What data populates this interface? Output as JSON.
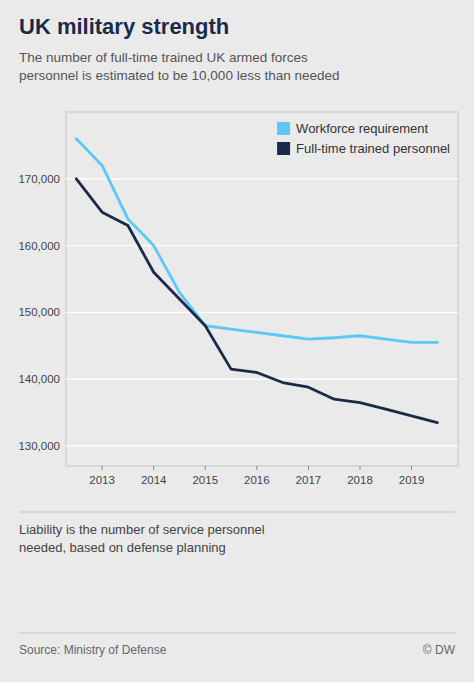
{
  "chart_data": {
    "type": "line",
    "title": "UK military strength",
    "subtitle": "The number of full-time trained UK armed forces\npersonnel is estimated to be 10,000 less than needed",
    "footnote": "Liability is the number of service personnel\nneeded, based on defense planning",
    "source": "Source: Ministry of Defense",
    "copyright": "© DW",
    "x": [
      2012.5,
      2013,
      2013.5,
      2014,
      2014.5,
      2015,
      2015.5,
      2016,
      2016.5,
      2017,
      2017.5,
      2018,
      2018.5,
      2019,
      2019.5
    ],
    "series": [
      {
        "name": "Workforce requirement",
        "color": "#5bc8f5",
        "values": [
          176000,
          172000,
          164000,
          160000,
          153000,
          148000,
          147500,
          147000,
          146500,
          146000,
          146200,
          146500,
          146000,
          145500,
          145500
        ]
      },
      {
        "name": "Full-time trained personnel",
        "color": "#1a2b4a",
        "values": [
          170000,
          165000,
          163000,
          156000,
          152000,
          148000,
          141500,
          141000,
          139500,
          138800,
          137000,
          136500,
          135500,
          134500,
          133500
        ]
      }
    ],
    "xlim": [
      2012.3,
      2019.9
    ],
    "xticks": [
      2013,
      2014,
      2015,
      2016,
      2017,
      2018,
      2019
    ],
    "ylim": [
      127000,
      180000
    ],
    "yticks": [
      {
        "value": 130000,
        "label": "130,000"
      },
      {
        "value": 140000,
        "label": "140,000"
      },
      {
        "value": 150000,
        "label": "150,000"
      },
      {
        "value": 160000,
        "label": "160,000"
      },
      {
        "value": 170000,
        "label": "170,000"
      }
    ],
    "grid": true,
    "legend": "upper right"
  }
}
